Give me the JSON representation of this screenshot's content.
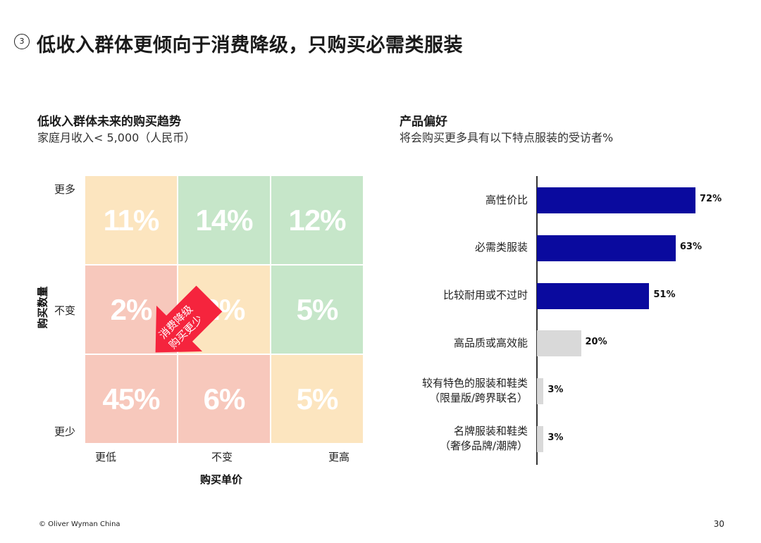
{
  "header": {
    "number": "3",
    "title": "低收入群体更倾向于消费降级，只购买必需类服装"
  },
  "left_section": {
    "title": "低收入群体未来的购买趋势",
    "subtitle": "家庭月收入< 5,000（人民币）",
    "y_axis_title": "购买数量",
    "x_axis_title": "购买单价",
    "y_labels": [
      "更多",
      "不变",
      "更少"
    ],
    "x_labels": [
      "更低",
      "不变",
      "更高"
    ],
    "arrow_label_line1": "消费降级",
    "arrow_label_line2": "购买更少",
    "colors": {
      "yellow": "#FCE5BF",
      "green": "#C6E6C9",
      "red": "#F7C8BC",
      "arrow": "#F5243D"
    }
  },
  "right_section": {
    "title": "产品偏好",
    "subtitle": "将会购买更多具有以下特点服装的受访者%"
  },
  "chart_data": [
    {
      "type": "heatmap",
      "title": "低收入群体未来的购买趋势",
      "subtitle": "家庭月收入< 5,000（人民币）",
      "xlabel": "购买单价",
      "ylabel": "购买数量",
      "x_categories": [
        "更低",
        "不变",
        "更高"
      ],
      "y_categories": [
        "更多",
        "不变",
        "更少"
      ],
      "cells": [
        {
          "row": 0,
          "col": 0,
          "value": 11,
          "label": "11%",
          "color": "yellow"
        },
        {
          "row": 0,
          "col": 1,
          "value": 14,
          "label": "14%",
          "color": "green"
        },
        {
          "row": 0,
          "col": 2,
          "value": 12,
          "label": "12%",
          "color": "green"
        },
        {
          "row": 1,
          "col": 0,
          "value": 2,
          "label": "2%",
          "color": "red"
        },
        {
          "row": 1,
          "col": 1,
          "value": 2,
          "label": "2%",
          "color": "yellow"
        },
        {
          "row": 1,
          "col": 2,
          "value": 5,
          "label": "5%",
          "color": "green"
        },
        {
          "row": 2,
          "col": 0,
          "value": 45,
          "label": "45%",
          "color": "red"
        },
        {
          "row": 2,
          "col": 1,
          "value": 6,
          "label": "6%",
          "color": "red"
        },
        {
          "row": 2,
          "col": 2,
          "value": 5,
          "label": "5%",
          "color": "yellow"
        }
      ]
    },
    {
      "type": "bar",
      "orientation": "horizontal",
      "title": "产品偏好",
      "subtitle": "将会购买更多具有以下特点服装的受访者%",
      "categories": [
        [
          "高性价比"
        ],
        [
          "必需类服装"
        ],
        [
          "比较耐用或不过时"
        ],
        [
          "高品质或高效能"
        ],
        [
          "较有特色的服装和鞋类",
          "（限量版/跨界联名）"
        ],
        [
          "名牌服装和鞋类",
          "（奢侈品牌/潮牌）"
        ]
      ],
      "values": [
        72,
        63,
        51,
        20,
        3,
        3
      ],
      "labels": [
        "72%",
        "63%",
        "51%",
        "20%",
        "3%",
        "3%"
      ],
      "bar_colors": [
        "#0A0A9E",
        "#0A0A9E",
        "#0A0A9E",
        "#D9D9D9",
        "#D9D9D9",
        "#D9D9D9"
      ],
      "xlim": [
        0,
        100
      ]
    }
  ],
  "footer": {
    "copyright": "© Oliver Wyman China",
    "page_number": "30"
  }
}
